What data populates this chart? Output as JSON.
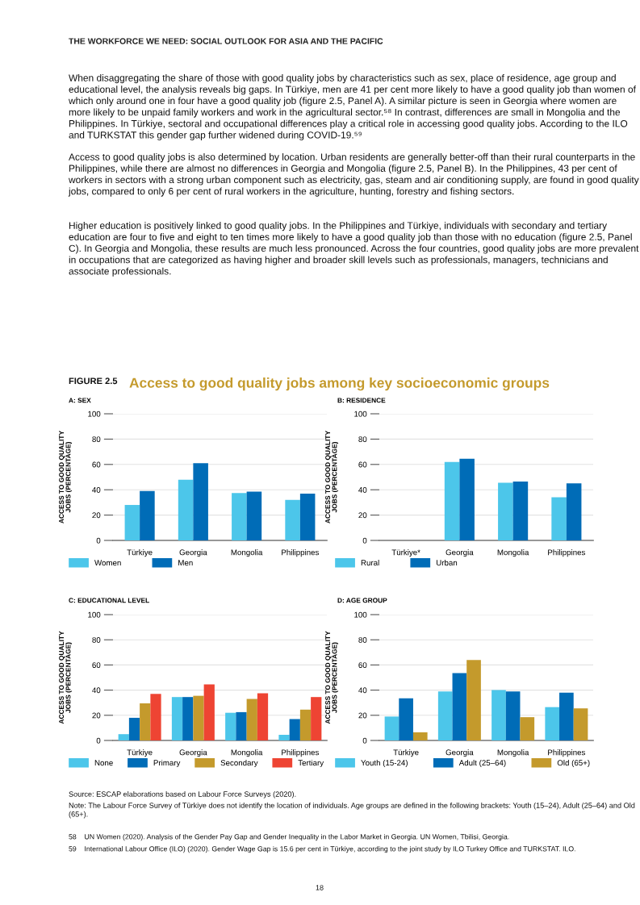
{
  "chart_data": [
    {
      "type": "bar",
      "title": "A: SEX",
      "ylabel": "ACCESS TO GOOD QUALITY\nJOBS (PERCENTAGE)",
      "categories": [
        "Türkiye",
        "Georgia",
        "Mongolia",
        "Philippines"
      ],
      "series": [
        {
          "name": "Women",
          "color": "#4cc6ea",
          "values": [
            28,
            48,
            37.5,
            32
          ]
        },
        {
          "name": "Men",
          "color": "#006cb7",
          "values": [
            39,
            61,
            38.5,
            37
          ]
        }
      ],
      "ylim": [
        0,
        100
      ],
      "yticks": [
        0,
        20,
        40,
        60,
        80,
        100
      ],
      "grid": "y",
      "legend": "bottom",
      "annotations": [
        "THE WORKFORCE WE NEED: SOCIAL OUTLOOK FOR ASIA AND THE PACIFIC",
        "When disaggregating the share of those with good quality jobs by characteristics such as sex, place of residence, age group and educational level, the analysis reveals big gaps. In Türkiye, men are 41 per cent more likely to have a good quality job than women of which only around one in four have a good quality job (figure 2.5, Panel A). A similar picture is seen in Georgia where women are more likely to be unpaid family workers and work in the agricultural sector.⁵⁸ In contrast, differences are small in Mongolia and the Philippines. In Türkiye, sectoral and occupational differences play a critical role in accessing good quality jobs. According to the ILO and TURKSTAT this gender gap further widened during COVID-19.⁵⁹",
        "Access to good quality jobs is also determined by location. Urban residents are generally better-off than their rural counterparts in the Philippines, while there are almost no differences in Georgia and Mongolia (figure 2.5, Panel B). In the Philippines, 43 per cent of workers in sectors with a strong urban component such as electricity, gas, steam and air conditioning supply, are found in good quality jobs, compared to only 6 per cent of rural workers in the agriculture, hunting, forestry and fishing sectors.",
        "Higher education is positively linked to good quality jobs. In the Philippines and Türkiye, individuals with secondary and tertiary education are four to five and eight to ten times more likely to have a good quality job than those with no education (figure 2.5, Panel C). In Georgia and Mongolia, these results are much less pronounced. Across the four countries, good quality jobs are more prevalent in occupations that are categorized as having higher and broader skill levels such as professionals, managers, technicians and associate professionals.",
        "FIGURE 2.5",
        "Access to good quality jobs among key socioeconomic groups"
      ]
    },
    {
      "type": "bar",
      "title": "B: RESIDENCE",
      "ylabel": "ACCESS TO GOOD QUALITY\nJOBS (PERCENTAGE)",
      "categories": [
        "Türkiye*",
        "Georgia",
        "Mongolia",
        "Philippines"
      ],
      "series": [
        {
          "name": "Rural",
          "color": "#4cc6ea",
          "values": [
            null,
            62,
            45.5,
            34
          ]
        },
        {
          "name": "Urban",
          "color": "#006cb7",
          "values": [
            null,
            64.5,
            46.5,
            45
          ]
        }
      ],
      "ylim": [
        0,
        100
      ],
      "yticks": [
        0,
        20,
        40,
        60,
        80,
        100
      ],
      "grid": "y",
      "legend": "bottom"
    },
    {
      "type": "bar",
      "title": "C: EDUCATIONAL LEVEL",
      "ylabel": "ACCESS TO GOOD QUALITY\nJOBS (PERCENTAGE)",
      "categories": [
        "Türkiye",
        "Georgia",
        "Mongolia",
        "Philippines"
      ],
      "series": [
        {
          "name": "None",
          "color": "#4cc6ea",
          "values": [
            5,
            34.5,
            22,
            4.5
          ]
        },
        {
          "name": "Primary",
          "color": "#006cb7",
          "values": [
            18,
            34.5,
            22.5,
            17
          ]
        },
        {
          "name": "Secondary",
          "color": "#c49a2c",
          "values": [
            29.5,
            35.5,
            33,
            24.5
          ]
        },
        {
          "name": "Tertiary",
          "color": "#ee4433",
          "values": [
            37,
            44.5,
            37.5,
            34.5
          ]
        }
      ],
      "ylim": [
        0,
        100
      ],
      "yticks": [
        0,
        20,
        40,
        60,
        80,
        100
      ],
      "grid": "y",
      "legend": "bottom"
    },
    {
      "type": "bar",
      "title": "D: AGE GROUP",
      "ylabel": "ACCESS TO GOOD QUALITY\nJOBS (PERCENTAGE)",
      "categories": [
        "Türkiye",
        "Georgia",
        "Mongolia",
        "Philippines"
      ],
      "series": [
        {
          "name": "Youth (15-24)",
          "color": "#4cc6ea",
          "values": [
            19,
            39,
            40,
            26.5
          ]
        },
        {
          "name": "Adult (25–64)",
          "color": "#006cb7",
          "values": [
            33.5,
            53.5,
            39,
            38
          ]
        },
        {
          "name": "Old (65+)",
          "color": "#c49a2c",
          "values": [
            6.5,
            64,
            18.5,
            25.5
          ]
        }
      ],
      "ylim": [
        0,
        100
      ],
      "yticks": [
        0,
        20,
        40,
        60,
        80,
        100
      ],
      "grid": "y",
      "legend": "bottom",
      "annotations": [
        "Source: ESCAP elaborations based on Labour Force Surveys (2020).",
        "Note: The Labour Force Survey of Türkiye does not identify the location of individuals. Age groups are defined in the following brackets: Youth (15–24), Adult (25–64) and Old (65+).",
        "58    UN Women (2020). Analysis of the Gender Pay Gap and Gender Inequality in the Labor Market in Georgia. UN Women, Tbilisi, Georgia.",
        "59    International Labour Office (ILO) (2020). Gender Wage Gap is 15.6 per cent in Türkiye, according to the joint study by ILO Turkey Office and TURKSTAT. ILO.",
        "18"
      ]
    }
  ]
}
